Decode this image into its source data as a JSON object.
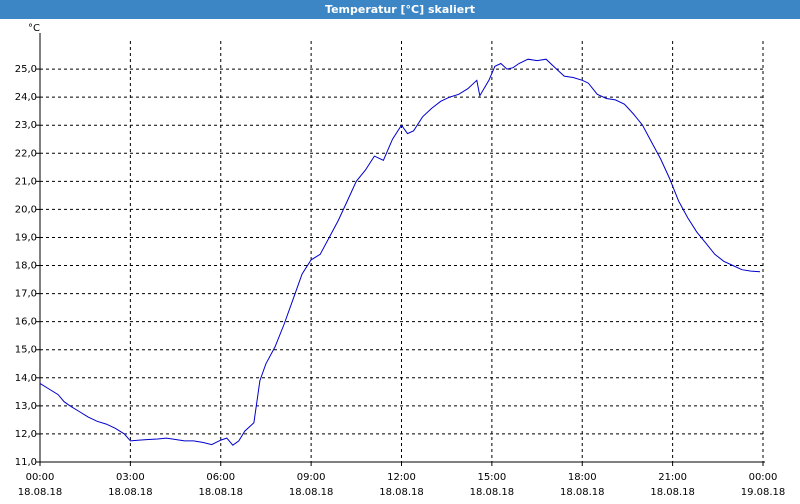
{
  "window": {
    "title": "Temperatur [°C] skaliert"
  },
  "chart_data": {
    "type": "line",
    "title": "Temperatur [°C] skaliert",
    "ylabel": "°C",
    "xlabel": "",
    "ylim": [
      11.0,
      26.0
    ],
    "xlim": [
      0,
      24
    ],
    "grid": true,
    "y_ticks": [
      "11,0",
      "12,0",
      "13,0",
      "14,0",
      "15,0",
      "16,0",
      "17,0",
      "18,0",
      "19,0",
      "20,0",
      "21,0",
      "22,0",
      "23,0",
      "24,0",
      "25,0"
    ],
    "x_ticks": [
      {
        "time": "00:00",
        "date": "18.08.18"
      },
      {
        "time": "03:00",
        "date": "18.08.18"
      },
      {
        "time": "06:00",
        "date": "18.08.18"
      },
      {
        "time": "09:00",
        "date": "18.08.18"
      },
      {
        "time": "12:00",
        "date": "18.08.18"
      },
      {
        "time": "15:00",
        "date": "18.08.18"
      },
      {
        "time": "18:00",
        "date": "18.08.18"
      },
      {
        "time": "21:00",
        "date": "18.08.18"
      },
      {
        "time": "00:00",
        "date": "19.08.18"
      }
    ],
    "series": [
      {
        "color": "#0000cc",
        "x": [
          0.0,
          0.3,
          0.6,
          0.8,
          1.0,
          1.3,
          1.6,
          1.9,
          2.2,
          2.5,
          2.8,
          3.0,
          3.3,
          3.6,
          3.9,
          4.2,
          4.5,
          4.8,
          5.1,
          5.4,
          5.7,
          6.0,
          6.2,
          6.4,
          6.6,
          6.8,
          7.1,
          7.3,
          7.5,
          7.8,
          8.1,
          8.4,
          8.7,
          9.0,
          9.3,
          9.6,
          9.9,
          10.2,
          10.5,
          10.8,
          11.1,
          11.4,
          11.7,
          12.0,
          12.2,
          12.4,
          12.7,
          13.0,
          13.3,
          13.6,
          13.9,
          14.2,
          14.5,
          14.6,
          14.9,
          15.1,
          15.3,
          15.5,
          15.7,
          15.9,
          16.2,
          16.5,
          16.8,
          17.1,
          17.4,
          17.7,
          18.0,
          18.2,
          18.5,
          18.8,
          19.1,
          19.4,
          19.7,
          20.0,
          20.3,
          20.6,
          20.9,
          21.2,
          21.5,
          21.8,
          22.1,
          22.4,
          22.7,
          23.0,
          23.3,
          23.6,
          23.9
        ],
        "y": [
          13.8,
          13.6,
          13.4,
          13.15,
          13.0,
          12.8,
          12.6,
          12.45,
          12.35,
          12.2,
          12.0,
          11.75,
          11.78,
          11.8,
          11.82,
          11.85,
          11.8,
          11.75,
          11.75,
          11.7,
          11.62,
          11.78,
          11.85,
          11.6,
          11.75,
          12.1,
          12.4,
          13.9,
          14.5,
          15.1,
          15.9,
          16.8,
          17.7,
          18.2,
          18.4,
          19.0,
          19.6,
          20.3,
          21.0,
          21.4,
          21.9,
          21.75,
          22.5,
          23.0,
          22.7,
          22.8,
          23.3,
          23.6,
          23.85,
          24.0,
          24.1,
          24.3,
          24.6,
          24.05,
          24.6,
          25.1,
          25.2,
          25.0,
          25.05,
          25.2,
          25.35,
          25.3,
          25.35,
          25.05,
          24.75,
          24.7,
          24.6,
          24.5,
          24.1,
          23.95,
          23.9,
          23.75,
          23.4,
          23.0,
          22.4,
          21.8,
          21.1,
          20.3,
          19.7,
          19.2,
          18.8,
          18.4,
          18.15,
          18.0,
          17.85,
          17.8,
          17.78
        ]
      }
    ]
  }
}
